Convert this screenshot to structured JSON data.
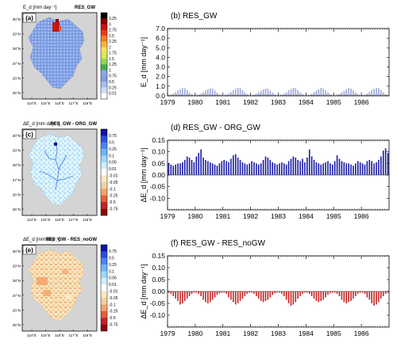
{
  "colors": {
    "map_background": "#d4d4d4",
    "frame": "#000000",
    "bar_blue_light": "#9da7d6",
    "bar_blue_dark": "#1a1aa6",
    "bar_red": "#c22424",
    "map_fill_a": "#7f9fe4",
    "map_fill_c": "#cfeffb",
    "map_fill_e": "#f4cfa0"
  },
  "map_axes": {
    "lat_labels": [
      "30°N",
      "29°N",
      "28°N",
      "27°N",
      "26°N",
      "25°N"
    ],
    "lon_labels": [
      "114°E",
      "115°E",
      "116°E",
      "117°E",
      "118°E"
    ]
  },
  "panels": {
    "a": {
      "label": "(a)",
      "units": "E_d [mm day⁻¹]",
      "subtitle": "RES_GW",
      "colorbar_labels": [
        "3.25",
        "3",
        "2.75",
        "2.5",
        "2.25",
        "2",
        "1.75",
        "1.5",
        "1.25",
        "1",
        "0.75",
        "0.5",
        "0.25",
        "0.01"
      ],
      "colorbar_colors": [
        "#000000",
        "#8c0000",
        "#cf1010",
        "#ee3a1a",
        "#f37b26",
        "#f8b23c",
        "#f6e05c",
        "#d5ea53",
        "#8fd55a",
        "#3fb04a",
        "#8fa6ea",
        "#7f9fe4",
        "#a6bff0",
        "#d0dbf6",
        "#ffffff"
      ]
    },
    "c": {
      "label": "(c)",
      "units": "ΔE_d [mm day⁻¹]",
      "subtitle": "RES_GW - ORG_GW",
      "colorbar_labels": [
        "0.75",
        "0.5",
        "0.25",
        "0.1",
        "0.05",
        "0.01",
        "-0.01",
        "-0.05",
        "-0.1",
        "-0.25",
        "-0.5",
        "-0.75"
      ],
      "colorbar_colors": [
        "#1414a0",
        "#2d4fd8",
        "#4a86f0",
        "#6eb6f7",
        "#9fd8fb",
        "#cfeffb",
        "#ffffff",
        "#f8e7c0",
        "#f4cfa0",
        "#f2a46a",
        "#e4603a",
        "#c22424",
        "#8c0a0a"
      ]
    },
    "e": {
      "label": "(e)",
      "units": "ΔE_d [mm day⁻¹]",
      "subtitle": "RES_GW - RES_noGW",
      "colorbar_labels": [
        "0.75",
        "0.5",
        "0.25",
        "0.1",
        "0.05",
        "0.01",
        "-0.01",
        "-0.05",
        "-0.1",
        "-0.25",
        "-0.5",
        "-0.75"
      ],
      "colorbar_colors": [
        "#1414a0",
        "#2d4fd8",
        "#4a86f0",
        "#6eb6f7",
        "#9fd8fb",
        "#cfeffb",
        "#ffffff",
        "#f8e7c0",
        "#f4cfa0",
        "#f2a46a",
        "#e4603a",
        "#c22424",
        "#8c0a0a"
      ]
    }
  },
  "chart_data": [
    {
      "id": "b",
      "type": "bar",
      "title": "(b) RES_GW",
      "ylabel": "E_d [mm day⁻¹]",
      "ylim": [
        0,
        7
      ],
      "yticks": [
        "0.0",
        "1.0",
        "2.0",
        "3.0",
        "4.0",
        "5.0",
        "6.0",
        "7.0"
      ],
      "ytick_values": [
        0,
        1,
        2,
        3,
        4,
        5,
        6,
        7
      ],
      "xlim": [
        1979,
        1987
      ],
      "xticks": [
        "1979",
        "1980",
        "1981",
        "1982",
        "1983",
        "1984",
        "1985",
        "1986"
      ],
      "xtick_values": [
        1979,
        1980,
        1981,
        1982,
        1983,
        1984,
        1985,
        1986
      ],
      "bar_color": "#9da7d6",
      "values_by_year": [
        [
          0.06,
          0.1,
          0.22,
          0.38,
          0.55,
          0.7,
          0.82,
          0.78,
          0.58,
          0.36,
          0.16,
          0.07
        ],
        [
          0.06,
          0.1,
          0.21,
          0.37,
          0.54,
          0.68,
          0.78,
          0.74,
          0.55,
          0.34,
          0.15,
          0.07
        ],
        [
          0.06,
          0.11,
          0.23,
          0.39,
          0.57,
          0.72,
          0.84,
          0.8,
          0.6,
          0.37,
          0.17,
          0.07
        ],
        [
          0.05,
          0.1,
          0.2,
          0.36,
          0.52,
          0.66,
          0.76,
          0.72,
          0.54,
          0.33,
          0.15,
          0.06
        ],
        [
          0.06,
          0.11,
          0.22,
          0.38,
          0.56,
          0.71,
          0.82,
          0.79,
          0.59,
          0.36,
          0.16,
          0.07
        ],
        [
          0.06,
          0.1,
          0.22,
          0.38,
          0.55,
          0.7,
          0.81,
          0.77,
          0.57,
          0.35,
          0.16,
          0.07
        ],
        [
          0.06,
          0.1,
          0.21,
          0.37,
          0.54,
          0.69,
          0.8,
          0.76,
          0.57,
          0.35,
          0.16,
          0.07
        ],
        [
          0.06,
          0.11,
          0.23,
          0.4,
          0.57,
          0.72,
          0.84,
          0.8,
          0.6,
          0.37,
          0.17,
          0.07
        ]
      ]
    },
    {
      "id": "d",
      "type": "bar",
      "title": "(d) RES_GW - ORG_GW",
      "ylabel": "ΔE_d [mm day⁻¹]",
      "ylim": [
        -0.15,
        0.15
      ],
      "yticks": [
        "0.15",
        "0.10",
        "0.05",
        "0.00",
        "-0.05",
        "-0.10"
      ],
      "ytick_values": [
        0.15,
        0.1,
        0.05,
        0.0,
        -0.05,
        -0.1
      ],
      "xlim": [
        1979,
        1987
      ],
      "xticks": [
        "1979",
        "1980",
        "1981",
        "1982",
        "1983",
        "1984",
        "1985",
        "1986"
      ],
      "xtick_values": [
        1979,
        1980,
        1981,
        1982,
        1983,
        1984,
        1985,
        1986
      ],
      "bar_color": "#1a1aa6",
      "values_by_year": [
        [
          0.05,
          0.045,
          0.04,
          0.045,
          0.05,
          0.05,
          0.055,
          0.065,
          0.08,
          0.075,
          0.065,
          0.055
        ],
        [
          0.08,
          0.095,
          0.11,
          0.075,
          0.065,
          0.06,
          0.055,
          0.05,
          0.045,
          0.04,
          0.05,
          0.06
        ],
        [
          0.065,
          0.06,
          0.055,
          0.07,
          0.085,
          0.09,
          0.075,
          0.065,
          0.055,
          0.05,
          0.045,
          0.05
        ],
        [
          0.06,
          0.055,
          0.05,
          0.045,
          0.05,
          0.065,
          0.08,
          0.075,
          0.065,
          0.055,
          0.05,
          0.045
        ],
        [
          0.05,
          0.055,
          0.05,
          0.045,
          0.06,
          0.07,
          0.08,
          0.075,
          0.065,
          0.06,
          0.07,
          0.055
        ],
        [
          0.075,
          0.11,
          0.08,
          0.065,
          0.055,
          0.05,
          0.045,
          0.05,
          0.055,
          0.06,
          0.05,
          0.045
        ],
        [
          0.06,
          0.085,
          0.07,
          0.06,
          0.055,
          0.05,
          0.05,
          0.045,
          0.04,
          0.05,
          0.06,
          0.055
        ],
        [
          0.05,
          0.045,
          0.06,
          0.065,
          0.06,
          0.05,
          0.055,
          0.065,
          0.08,
          0.105,
          0.115,
          0.095
        ]
      ]
    },
    {
      "id": "f",
      "type": "bar",
      "title": "(f) RES_GW - RES_noGW",
      "ylabel": "ΔE_d [mm day⁻¹]",
      "ylim": [
        -0.15,
        0.15
      ],
      "yticks": [
        "0.15",
        "0.10",
        "0.05",
        "0.00",
        "-0.05",
        "-0.10"
      ],
      "ytick_values": [
        0.15,
        0.1,
        0.05,
        0.0,
        -0.05,
        -0.1
      ],
      "xlim": [
        1979,
        1987
      ],
      "xticks": [
        "1979",
        "1980",
        "1981",
        "1982",
        "1983",
        "1984",
        "1985",
        "1986"
      ],
      "xtick_values": [
        1979,
        1980,
        1981,
        1982,
        1983,
        1984,
        1985,
        1986
      ],
      "bar_color": "#c22424",
      "values_by_year": [
        [
          -0.005,
          -0.01,
          -0.02,
          -0.03,
          -0.04,
          -0.055,
          -0.05,
          -0.04,
          -0.03,
          -0.02,
          -0.01,
          -0.005
        ],
        [
          -0.005,
          -0.01,
          -0.02,
          -0.035,
          -0.045,
          -0.05,
          -0.045,
          -0.035,
          -0.025,
          -0.015,
          -0.008,
          -0.005
        ],
        [
          -0.005,
          -0.01,
          -0.025,
          -0.035,
          -0.045,
          -0.055,
          -0.05,
          -0.04,
          -0.03,
          -0.02,
          -0.01,
          -0.005
        ],
        [
          -0.005,
          -0.01,
          -0.02,
          -0.03,
          -0.04,
          -0.045,
          -0.04,
          -0.035,
          -0.025,
          -0.015,
          -0.008,
          -0.005
        ],
        [
          -0.005,
          -0.01,
          -0.02,
          -0.035,
          -0.05,
          -0.06,
          -0.055,
          -0.045,
          -0.03,
          -0.02,
          -0.01,
          -0.005
        ],
        [
          -0.005,
          -0.01,
          -0.02,
          -0.03,
          -0.04,
          -0.045,
          -0.04,
          -0.035,
          -0.025,
          -0.015,
          -0.008,
          -0.005
        ],
        [
          -0.005,
          -0.01,
          -0.02,
          -0.035,
          -0.045,
          -0.05,
          -0.045,
          -0.04,
          -0.03,
          -0.02,
          -0.01,
          -0.005
        ],
        [
          -0.005,
          -0.01,
          -0.025,
          -0.035,
          -0.05,
          -0.06,
          -0.055,
          -0.045,
          -0.03,
          -0.02,
          -0.01,
          -0.005
        ]
      ]
    }
  ]
}
